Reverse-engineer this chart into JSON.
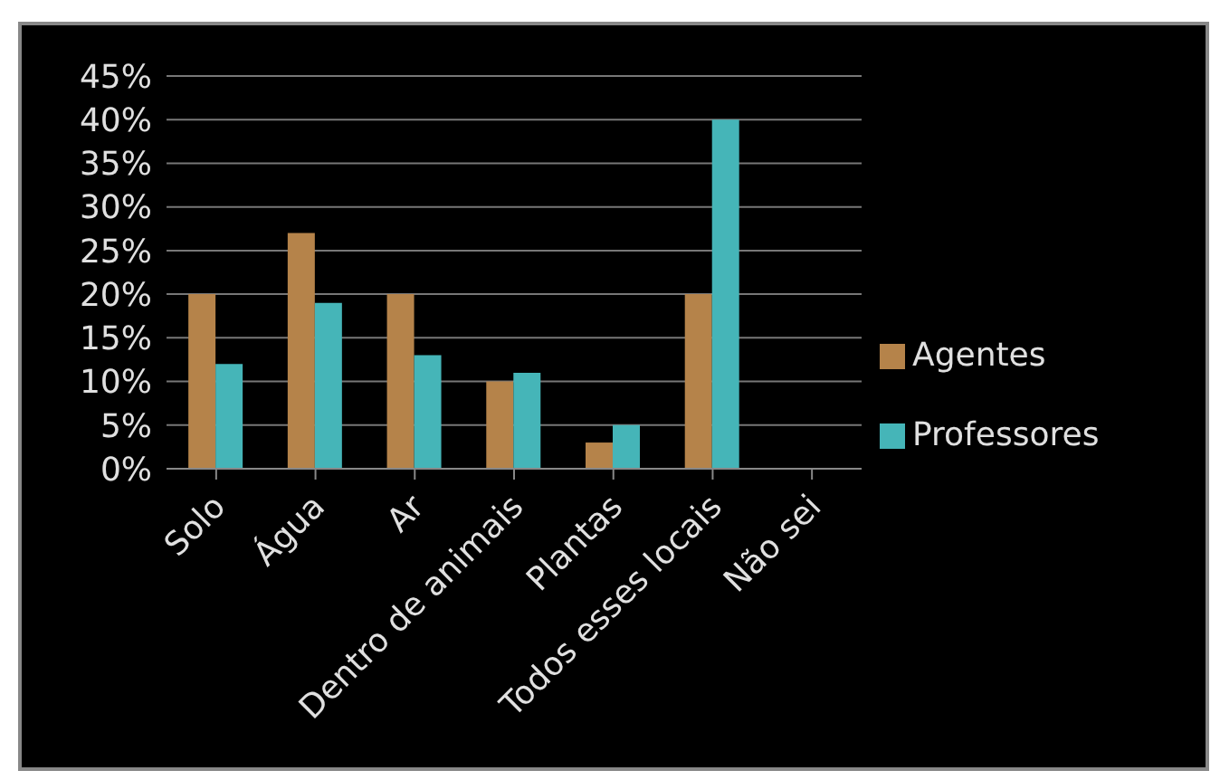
{
  "chart_data": {
    "type": "bar",
    "categories": [
      "Solo",
      "Água",
      "Ar",
      "Dentro de animais",
      "Plantas",
      "Todos esses locais",
      "Não sei"
    ],
    "series": [
      {
        "name": "Agentes",
        "color": "#b5834a",
        "values": [
          20,
          27,
          20,
          10,
          3,
          20,
          0
        ]
      },
      {
        "name": "Professores",
        "color": "#45b5b8",
        "values": [
          12,
          19,
          13,
          11,
          5,
          40,
          0
        ]
      }
    ],
    "ylim": [
      0,
      45
    ],
    "yticks": [
      {
        "value": 0,
        "label": "0%"
      },
      {
        "value": 5,
        "label": "5%"
      },
      {
        "value": 10,
        "label": "10%"
      },
      {
        "value": 15,
        "label": "15%"
      },
      {
        "value": 20,
        "label": "20%"
      },
      {
        "value": 25,
        "label": "25%"
      },
      {
        "value": 30,
        "label": "30%"
      },
      {
        "value": 35,
        "label": "35%"
      },
      {
        "value": 40,
        "label": "40%"
      },
      {
        "value": 45,
        "label": "45%"
      }
    ],
    "grid": "y",
    "legend": "right"
  }
}
